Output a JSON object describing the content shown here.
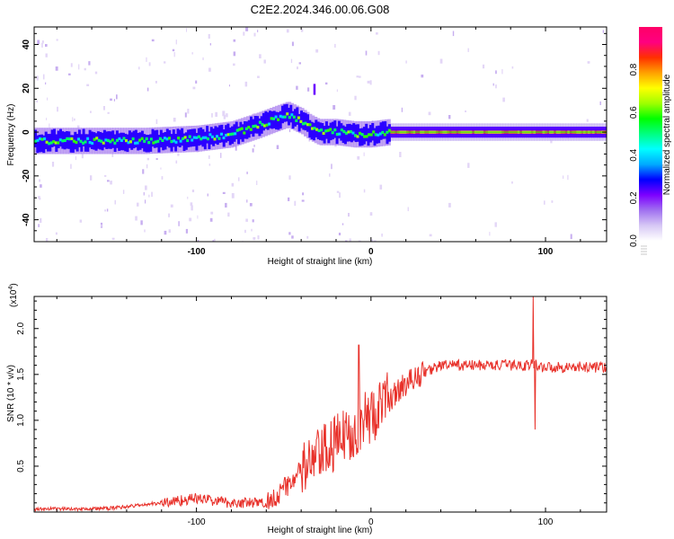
{
  "title": "C2E2.2024.346.00.06.G08",
  "chart_data": [
    {
      "type": "heatmap",
      "xlabel": "Height of straight line (km)",
      "ylabel": "Frequency (Hz)",
      "xlim": [
        -193,
        135
      ],
      "ylim": [
        -50,
        48
      ],
      "xticks": [
        -100,
        0,
        100
      ],
      "yticks": [
        -40,
        -20,
        0,
        20,
        40
      ],
      "colorbar": {
        "label": "Normalized spectral amplitude",
        "range": [
          0,
          1
        ],
        "ticks": [
          "0.0",
          "0.2",
          "0.4",
          "0.6",
          "0.8"
        ],
        "colors": [
          "#ffffff",
          "#d7c8f5",
          "#a070f0",
          "#7d00ff",
          "#0000ff",
          "#00aaff",
          "#00ffff",
          "#00ff80",
          "#00ff00",
          "#a0ff00",
          "#ffff00",
          "#ffa000",
          "#ff3000",
          "#ff0080",
          "#ff0066"
        ]
      },
      "ridge": {
        "x": [
          -193,
          -160,
          -130,
          -100,
          -80,
          -65,
          -55,
          -48,
          -40,
          -35,
          -30,
          -20,
          -10,
          0,
          10,
          50,
          90,
          135
        ],
        "y": [
          -4,
          -4,
          -4,
          -3,
          -1,
          3,
          6,
          8,
          5,
          2,
          0,
          0,
          -1,
          -1,
          0,
          0,
          0,
          0
        ]
      },
      "spike": {
        "x": -33,
        "y": 22
      }
    },
    {
      "type": "line",
      "xlabel": "Height of straight line (km)",
      "ylabel": "SNR (10 * v/v)",
      "yscale_label": "(x10",
      "yscale_exp": "4",
      "xlim": [
        -193,
        135
      ],
      "ylim": [
        0,
        2.35
      ],
      "xticks": [
        -100,
        0,
        100
      ],
      "yticks": [
        0.5,
        1.0,
        1.5,
        2.0
      ],
      "ytick_labels": [
        "0.5",
        "1.0",
        "1.5",
        "2.0"
      ],
      "series": [
        {
          "color": "#e8312a",
          "x": [
            -193,
            -150,
            -120,
            -100,
            -80,
            -60,
            -50,
            -40,
            -30,
            -20,
            -10,
            0,
            10,
            20,
            30,
            40,
            60,
            80,
            90,
            92,
            95,
            100,
            120,
            135
          ],
          "y": [
            0.03,
            0.04,
            0.1,
            0.15,
            0.1,
            0.1,
            0.25,
            0.45,
            0.6,
            0.75,
            0.9,
            1.05,
            1.22,
            1.4,
            1.52,
            1.6,
            1.6,
            1.6,
            1.6,
            1.62,
            1.6,
            1.58,
            1.58,
            1.58
          ]
        }
      ],
      "spikes": [
        {
          "x": -7,
          "y": 1.82
        },
        {
          "x": 93,
          "y": 2.35
        },
        {
          "x": 94,
          "y": 0.9
        }
      ]
    }
  ]
}
